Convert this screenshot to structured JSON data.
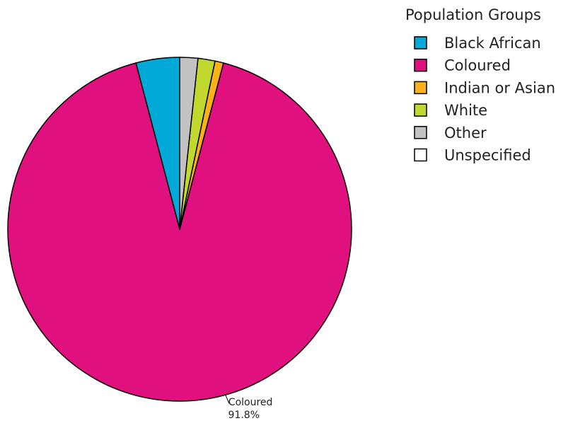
{
  "chart_data": {
    "type": "pie",
    "legend_title": "Population Groups",
    "legend_position": "top-right",
    "slices": [
      {
        "label": "Black African",
        "value": 4.1,
        "color": "#00a9d8"
      },
      {
        "label": "Coloured",
        "value": 91.8,
        "color": "#e0107e"
      },
      {
        "label": "Indian or Asian",
        "value": 0.8,
        "color": "#fbb117"
      },
      {
        "label": "White",
        "value": 1.6,
        "color": "#c1d82f"
      },
      {
        "label": "Other",
        "value": 1.7,
        "color": "#c2c2c2"
      },
      {
        "label": "Unspecified",
        "value": 0.0,
        "color": "#ffffff"
      }
    ],
    "data_labels": [
      {
        "series": "Coloured",
        "name": "Coloured",
        "percent": "91.8%"
      }
    ]
  }
}
